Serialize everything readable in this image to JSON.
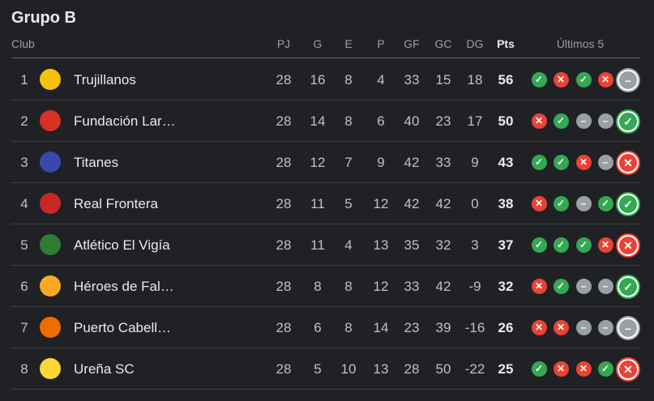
{
  "title": "Grupo B",
  "headers": {
    "club": "Club",
    "pj": "PJ",
    "g": "G",
    "e": "E",
    "p": "P",
    "gf": "GF",
    "gc": "GC",
    "dg": "DG",
    "pts": "Pts",
    "last5": "Últimos 5"
  },
  "colors": {
    "W": "#34a853",
    "L": "#ea4335",
    "D": "#9aa0a6"
  },
  "icons": {
    "W": "✓",
    "L": "✕",
    "D": "–"
  },
  "rows": [
    {
      "rank": "1",
      "name": "Trujillanos",
      "pj": "28",
      "g": "16",
      "e": "8",
      "p": "4",
      "gf": "33",
      "gc": "15",
      "dg": "18",
      "pts": "56",
      "last5": [
        "W",
        "L",
        "W",
        "L",
        "D"
      ],
      "logo": "#f4c20d"
    },
    {
      "rank": "2",
      "name": "Fundación Lar…",
      "pj": "28",
      "g": "14",
      "e": "8",
      "p": "6",
      "gf": "40",
      "gc": "23",
      "dg": "17",
      "pts": "50",
      "last5": [
        "L",
        "W",
        "D",
        "D",
        "W"
      ],
      "logo": "#d93025"
    },
    {
      "rank": "3",
      "name": "Titanes",
      "pj": "28",
      "g": "12",
      "e": "7",
      "p": "9",
      "gf": "42",
      "gc": "33",
      "dg": "9",
      "pts": "43",
      "last5": [
        "W",
        "W",
        "L",
        "D",
        "L"
      ],
      "logo": "#3949ab"
    },
    {
      "rank": "4",
      "name": "Real Frontera",
      "pj": "28",
      "g": "11",
      "e": "5",
      "p": "12",
      "gf": "42",
      "gc": "42",
      "dg": "0",
      "pts": "38",
      "last5": [
        "L",
        "W",
        "D",
        "W",
        "W"
      ],
      "logo": "#c62828"
    },
    {
      "rank": "5",
      "name": "Atlético El Vigía",
      "pj": "28",
      "g": "11",
      "e": "4",
      "p": "13",
      "gf": "35",
      "gc": "32",
      "dg": "3",
      "pts": "37",
      "last5": [
        "W",
        "W",
        "W",
        "L",
        "L"
      ],
      "logo": "#2e7d32"
    },
    {
      "rank": "6",
      "name": "Héroes de Fal…",
      "pj": "28",
      "g": "8",
      "e": "8",
      "p": "12",
      "gf": "33",
      "gc": "42",
      "dg": "-9",
      "pts": "32",
      "last5": [
        "L",
        "W",
        "D",
        "D",
        "W"
      ],
      "logo": "#f9a825"
    },
    {
      "rank": "7",
      "name": "Puerto Cabell…",
      "pj": "28",
      "g": "6",
      "e": "8",
      "p": "14",
      "gf": "23",
      "gc": "39",
      "dg": "-16",
      "pts": "26",
      "last5": [
        "L",
        "L",
        "D",
        "D",
        "D"
      ],
      "logo": "#ef6c00"
    },
    {
      "rank": "8",
      "name": "Ureña SC",
      "pj": "28",
      "g": "5",
      "e": "10",
      "p": "13",
      "gf": "28",
      "gc": "50",
      "dg": "-22",
      "pts": "25",
      "last5": [
        "W",
        "L",
        "L",
        "W",
        "L"
      ],
      "logo": "#fdd835"
    }
  ]
}
